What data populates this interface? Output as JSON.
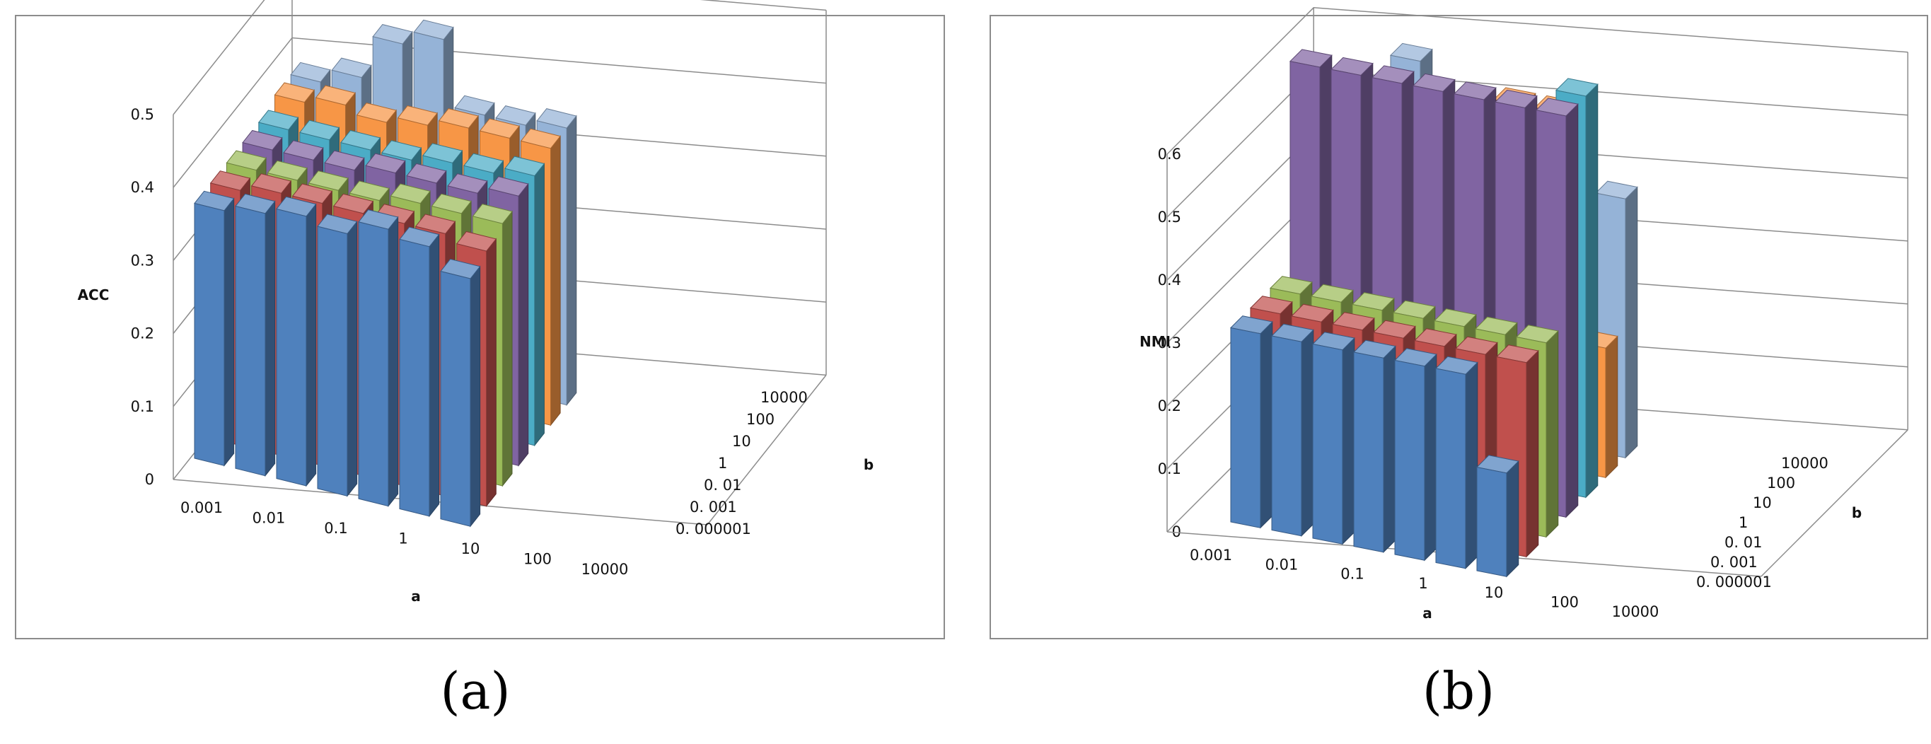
{
  "captions": [
    "(a)",
    "(b)"
  ],
  "chart_data": [
    {
      "type": "bar3d",
      "ylabel": "ACC",
      "xlabel": "a",
      "zlabel": "b",
      "yticks": [
        "0",
        "0.1",
        "0.2",
        "0.3",
        "0.4",
        "0.5"
      ],
      "ylim": [
        0,
        0.5
      ],
      "categories": [
        "0.001",
        "0.01",
        "0.1",
        "1",
        "10",
        "100",
        "10000"
      ],
      "series": [
        {
          "name": "0.000001",
          "color": "#4f81bd",
          "values": [
            0.35,
            0.36,
            0.37,
            0.36,
            0.38,
            0.37,
            0.34
          ]
        },
        {
          "name": "0.001",
          "color": "#c0504d",
          "values": [
            0.35,
            0.36,
            0.36,
            0.36,
            0.36,
            0.36,
            0.35
          ]
        },
        {
          "name": "0.01",
          "color": "#9bbb59",
          "values": [
            0.35,
            0.35,
            0.35,
            0.35,
            0.36,
            0.36,
            0.36
          ]
        },
        {
          "name": "1",
          "color": "#8064a2",
          "values": [
            0.35,
            0.35,
            0.35,
            0.36,
            0.36,
            0.36,
            0.37
          ]
        },
        {
          "name": "10",
          "color": "#4bacc6",
          "values": [
            0.35,
            0.35,
            0.35,
            0.35,
            0.36,
            0.36,
            0.37
          ]
        },
        {
          "name": "100",
          "color": "#f79646",
          "values": [
            0.36,
            0.37,
            0.36,
            0.37,
            0.38,
            0.38,
            0.38
          ]
        },
        {
          "name": "10000",
          "color": "#95b3d7",
          "values": [
            0.36,
            0.38,
            0.44,
            0.46,
            0.37,
            0.37,
            0.38
          ]
        }
      ],
      "zticks": [
        "0. 000001",
        "0. 001",
        "0. 01",
        "1",
        "10",
        "100",
        "10000"
      ]
    },
    {
      "type": "bar3d",
      "ylabel": "NMI",
      "xlabel": "a",
      "zlabel": "b",
      "yticks": [
        "0",
        "0.1",
        "0.2",
        "0.3",
        "0.4",
        "0.5",
        "0.6"
      ],
      "ylim": [
        0,
        0.6
      ],
      "categories": [
        "0.001",
        "0.01",
        "0.1",
        "1",
        "10",
        "100",
        "10000"
      ],
      "series": [
        {
          "name": "0.000001",
          "color": "#4f81bd",
          "values": [
            0.3,
            0.3,
            0.3,
            0.3,
            0.3,
            0.3,
            0.16
          ]
        },
        {
          "name": "0.001",
          "color": "#c0504d",
          "values": [
            0.3,
            0.3,
            0.3,
            0.3,
            0.3,
            0.3,
            0.3
          ]
        },
        {
          "name": "0.01",
          "color": "#9bbb59",
          "values": [
            0.3,
            0.3,
            0.3,
            0.3,
            0.3,
            0.3,
            0.3
          ]
        },
        {
          "name": "1",
          "color": "#8064a2",
          "values": [
            0.62,
            0.62,
            0.62,
            0.62,
            0.62,
            0.62,
            0.62
          ]
        },
        {
          "name": "10",
          "color": "#4bacc6",
          "values": [
            0.45,
            0.45,
            0.45,
            0.3,
            0.54,
            0.3,
            0.62
          ]
        },
        {
          "name": "100",
          "color": "#f79646",
          "values": [
            0.3,
            0.52,
            0.52,
            0.3,
            0.55,
            0.55,
            0.2
          ]
        },
        {
          "name": "10000",
          "color": "#95b3d7",
          "values": [
            0.45,
            0.55,
            0.3,
            0.28,
            0.28,
            0.3,
            0.4
          ]
        }
      ],
      "zticks": [
        "0. 000001",
        "0. 001",
        "0. 01",
        "1",
        "10",
        "100",
        "10000"
      ]
    }
  ]
}
